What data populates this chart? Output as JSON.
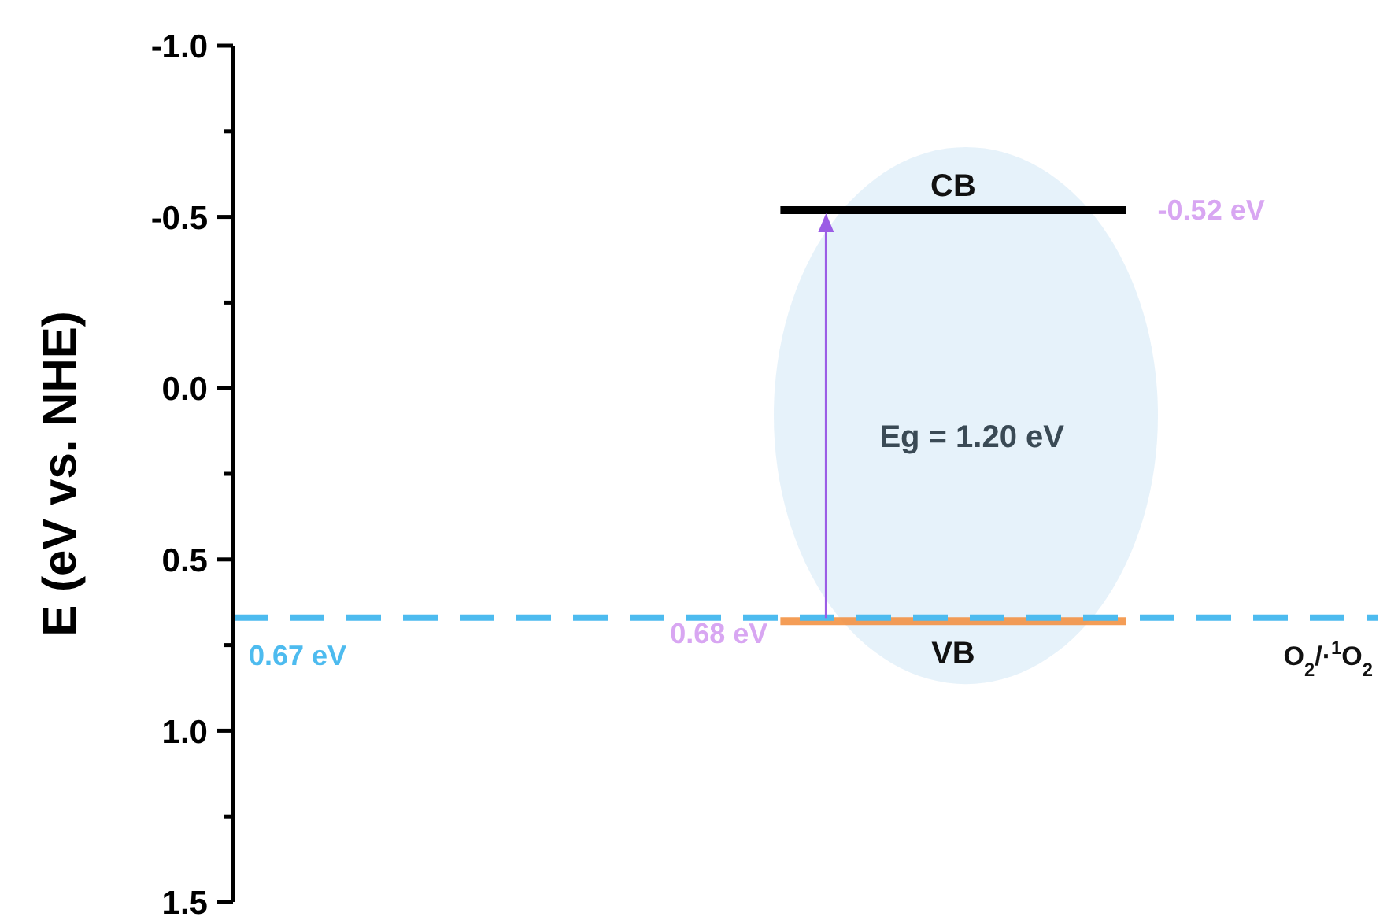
{
  "chart_data": {
    "type": "line",
    "ylabel": "E (eV vs. NHE)",
    "ylim": [
      1.5,
      -1.0
    ],
    "yticks": [
      {
        "value": -1.0,
        "label": "-1.0"
      },
      {
        "value": -0.75,
        "label": null
      },
      {
        "value": -0.5,
        "label": "-0.5"
      },
      {
        "value": -0.25,
        "label": null
      },
      {
        "value": 0,
        "label": "0.0"
      },
      {
        "value": 0.25,
        "label": null
      },
      {
        "value": 0.5,
        "label": "0.5"
      },
      {
        "value": 0.75,
        "label": null
      },
      {
        "value": 1.0,
        "label": "1.0"
      },
      {
        "value": 1.25,
        "label": null
      },
      {
        "value": 1.5,
        "label": "1.5"
      }
    ],
    "tick_labels": "y",
    "categories": [
      null,
      null,
      null,
      null,
      null,
      null,
      null,
      null,
      null,
      null,
      null,
      null,
      null,
      null,
      null,
      null,
      null,
      null,
      null,
      null
    ],
    "series": [
      {
        "name": "CB",
        "color": "#000000",
        "values": [
          null,
          null,
          null,
          null,
          null,
          null,
          null,
          null,
          null,
          -0.52,
          -0.52,
          -0.52,
          -0.52,
          -0.52,
          -0.52,
          -0.52,
          null,
          null,
          null,
          null
        ]
      },
      {
        "name": "VB",
        "color": "#f28c38",
        "values": [
          null,
          null,
          null,
          null,
          null,
          null,
          null,
          null,
          null,
          0.68,
          0.68,
          0.68,
          0.68,
          0.68,
          0.68,
          0.68,
          null,
          null,
          null,
          null
        ]
      }
    ],
    "ref_lines": [
      {
        "axis": "y",
        "value": 0.67,
        "label": "O$_{2}$/·$^{1}$O$_{2}$",
        "color": "#4dbbef",
        "line_style": "dashed"
      }
    ],
    "annotations": [
      "-0.52 eV",
      "0.68 eV",
      "0.67 eV",
      "Eg = 1.20 eV"
    ]
  }
}
